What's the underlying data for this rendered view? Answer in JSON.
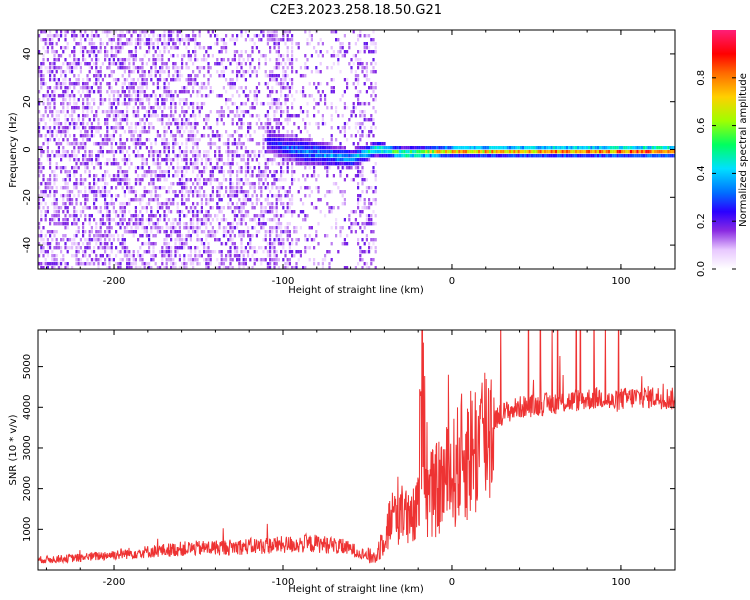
{
  "title": "C2E3.2023.258.18.50.G21",
  "chart_data": [
    {
      "type": "heatmap",
      "xlabel": "Height of straight line (km)",
      "ylabel": "Frequency (Hz)",
      "xlim": [
        -245,
        132
      ],
      "ylim": [
        -50,
        50
      ],
      "xticks": [
        -200,
        -100,
        0,
        100
      ],
      "xtick_labels": [
        "-200",
        "-100",
        "0",
        "100"
      ],
      "yticks": [
        -40,
        -20,
        0,
        20,
        40
      ],
      "ytick_labels": [
        "-40",
        "-20",
        "0",
        "20",
        "40"
      ],
      "colorbar": {
        "label": "Normalized spectral amplitude",
        "range": [
          0,
          1
        ],
        "ticks": [
          0,
          0.2,
          0.4,
          0.6,
          0.8
        ],
        "tick_labels": [
          "0.0",
          "0.2",
          "0.4",
          "0.6",
          "0.8"
        ],
        "colormap": [
          "#ffffff",
          "#e8c8ff",
          "#8a2be2",
          "#2a00ff",
          "#0070ff",
          "#00e0ff",
          "#00ff60",
          "#a0ff00",
          "#ffd000",
          "#ff6a00",
          "#ff0000",
          "#ff1e78"
        ]
      },
      "features": {
        "noise_region_x": [
          -245,
          -45
        ],
        "noise_amplitude": 0.12,
        "signal_band": [
          {
            "x": -110,
            "freq": 4,
            "width_hz": 8,
            "amplitude": 0.3
          },
          {
            "x": -90,
            "freq": 0,
            "width_hz": 10,
            "amplitude": 0.4
          },
          {
            "x": -60,
            "freq": -3,
            "width_hz": 6,
            "amplitude": 0.45
          },
          {
            "x": -45,
            "freq": 1,
            "width_hz": 4,
            "amplitude": 0.55
          },
          {
            "x": -30,
            "freq": -1,
            "width_hz": 3,
            "amplitude": 0.65
          },
          {
            "x": 0,
            "freq": 0,
            "width_hz": 2,
            "amplitude": 0.8
          },
          {
            "x": 50,
            "freq": 0,
            "width_hz": 2,
            "amplitude": 0.85
          },
          {
            "x": 95,
            "freq": 0,
            "width_hz": 2,
            "amplitude": 0.9
          },
          {
            "x": 132,
            "freq": 0,
            "width_hz": 2,
            "amplitude": 0.95
          }
        ]
      }
    },
    {
      "type": "line",
      "xlabel": "Height of straight line (km)",
      "ylabel": "SNR (10 * v/v)",
      "xlim": [
        -245,
        132
      ],
      "ylim": [
        0,
        5900
      ],
      "xticks": [
        -200,
        -100,
        0,
        100
      ],
      "xtick_labels": [
        "-200",
        "-100",
        "0",
        "100"
      ],
      "yticks": [
        1000,
        2000,
        3000,
        4000,
        5000
      ],
      "ytick_labels": [
        "1000",
        "2000",
        "3000",
        "4000",
        "5000"
      ],
      "color": "#ee3333",
      "series": [
        {
          "x": [
            -245,
            -220,
            -200,
            -180,
            -160,
            -140,
            -120,
            -100,
            -80,
            -70,
            -60,
            -50,
            -45,
            -40,
            -35,
            -30,
            -25,
            -20,
            -17,
            -15,
            -10,
            -5,
            0,
            5,
            10,
            15,
            20,
            25,
            30,
            40,
            50,
            60,
            70,
            80,
            90,
            95,
            100,
            110,
            120,
            132
          ],
          "y": [
            250,
            300,
            380,
            450,
            520,
            550,
            580,
            620,
            650,
            600,
            520,
            350,
            300,
            900,
            1300,
            1600,
            1100,
            1500,
            5850,
            1800,
            1900,
            2200,
            2300,
            2700,
            2900,
            3000,
            3400,
            3700,
            3850,
            4000,
            4050,
            4100,
            4150,
            4200,
            4250,
            4100,
            4200,
            4250,
            4250,
            4200
          ]
        }
      ]
    }
  ]
}
